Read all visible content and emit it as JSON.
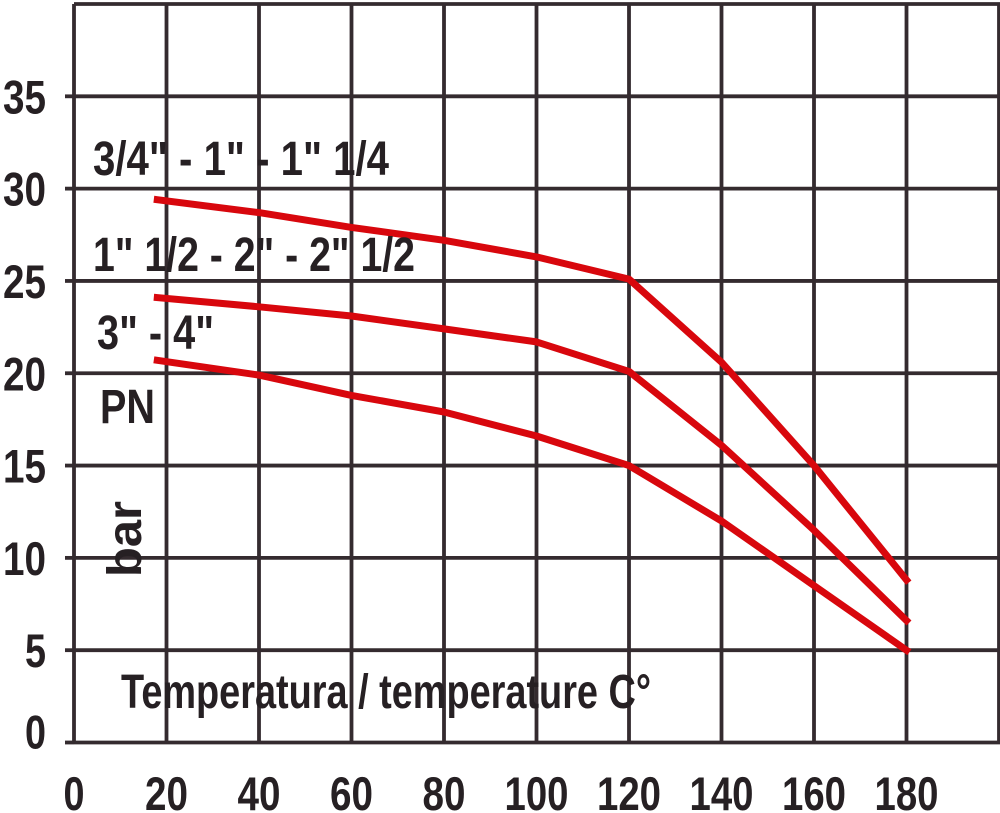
{
  "chart_data": {
    "type": "line",
    "title": "",
    "xlabel": "Temperatura / temperature C°",
    "ylabel_name": "PN",
    "ylabel_unit": "bar",
    "xlim": [
      0,
      200
    ],
    "ylim": [
      0,
      40
    ],
    "xticks": [
      0,
      20,
      40,
      60,
      80,
      100,
      120,
      140,
      160,
      180
    ],
    "yticks": [
      0,
      5,
      10,
      15,
      20,
      25,
      30,
      35
    ],
    "grid": true,
    "legend_position": "inline-annotations",
    "colors": {
      "curve": "#d8070d",
      "grid": "#342b2f",
      "text": "#262023",
      "background": "#ffffff"
    },
    "series": [
      {
        "name": "3/4\" - 1\" - 1\" 1/4",
        "points": [
          [
            18,
            29.4
          ],
          [
            40,
            28.7
          ],
          [
            60,
            27.9
          ],
          [
            80,
            27.2
          ],
          [
            100,
            26.3
          ],
          [
            120,
            25.1
          ],
          [
            140,
            20.6
          ],
          [
            160,
            15.0
          ],
          [
            180,
            8.8
          ]
        ]
      },
      {
        "name": "1\" 1/2 - 2\" - 2\" 1/2",
        "points": [
          [
            18,
            24.1
          ],
          [
            40,
            23.6
          ],
          [
            60,
            23.1
          ],
          [
            80,
            22.4
          ],
          [
            100,
            21.7
          ],
          [
            120,
            20.1
          ],
          [
            140,
            16.1
          ],
          [
            160,
            11.5
          ],
          [
            180,
            6.6
          ]
        ]
      },
      {
        "name": "3\" - 4\"",
        "points": [
          [
            18,
            20.7
          ],
          [
            40,
            19.9
          ],
          [
            60,
            18.8
          ],
          [
            80,
            17.9
          ],
          [
            100,
            16.6
          ],
          [
            120,
            15.0
          ],
          [
            140,
            12.0
          ],
          [
            160,
            8.5
          ],
          [
            180,
            5.0
          ]
        ]
      }
    ]
  }
}
